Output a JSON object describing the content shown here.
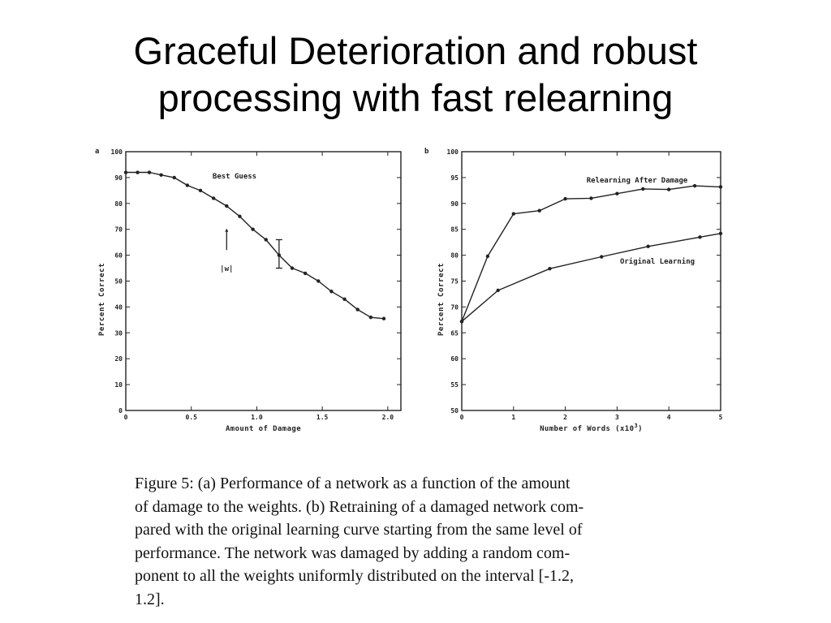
{
  "slide": {
    "title_line1": "Graceful Deterioration and robust",
    "title_line2": "processing with fast relearning"
  },
  "caption": {
    "lines": [
      "Figure 5: (a) Performance of a network as a function of the amount",
      "of damage to the weights. (b) Retraining of a damaged network com-",
      "pared with the original learning curve starting from the same level of",
      "performance. The network was damaged by adding a random com-",
      "ponent to all the weights uniformly distributed on the interval [-1.2,",
      "1.2]."
    ]
  },
  "chart_data": [
    {
      "panel_label": "a",
      "type": "line",
      "xlabel": "Amount of Damage",
      "ylabel": "Percent Correct",
      "xlim": [
        0,
        2.1
      ],
      "ylim": [
        0,
        100
      ],
      "xticks": [
        0,
        0.5,
        1.0,
        1.5,
        2.0
      ],
      "xtick_labels": [
        "0",
        "0.5",
        "1.0",
        "1.5",
        "2.0"
      ],
      "yticks": [
        0,
        10,
        20,
        30,
        40,
        50,
        60,
        70,
        80,
        90,
        100
      ],
      "ytick_labels": [
        "0",
        "10",
        "20",
        "30",
        "40",
        "50",
        "60",
        "70",
        "80",
        "90",
        "100"
      ],
      "series": [
        {
          "name": "Best Guess",
          "x": [
            0.0,
            0.09,
            0.18,
            0.27,
            0.37,
            0.47,
            0.57,
            0.67,
            0.77,
            0.87,
            0.97,
            1.07,
            1.17,
            1.27,
            1.37,
            1.47,
            1.57,
            1.67,
            1.77,
            1.87,
            1.97
          ],
          "y": [
            92,
            92,
            92,
            91,
            90,
            87,
            85,
            82,
            79,
            75,
            70,
            66,
            60,
            55,
            53,
            50,
            46,
            43,
            39,
            36,
            35.5
          ]
        }
      ],
      "error_bar": {
        "x": 1.17,
        "y": 60,
        "low": 55,
        "high": 66
      },
      "annotations": {
        "arrow_label": "|w|",
        "arrow_x": 0.77,
        "arrow_from_y": 62,
        "arrow_to_y": 70
      }
    },
    {
      "panel_label": "b",
      "type": "line",
      "xlabel": "Number of Words (x10",
      "xlabel_superscript": "3",
      "xlabel_suffix": ")",
      "ylabel": "Percent Correct",
      "xlim": [
        0,
        5
      ],
      "ylim": [
        50,
        100
      ],
      "xticks": [
        0,
        1,
        2,
        3,
        4,
        5
      ],
      "xtick_labels": [
        "0",
        "1",
        "2",
        "3",
        "4",
        "5"
      ],
      "yticks": [
        50,
        55,
        60,
        65,
        70,
        75,
        80,
        85,
        90,
        95,
        100
      ],
      "ytick_labels": [
        "50",
        "55",
        "60",
        "65",
        "70",
        "75",
        "80",
        "85",
        "90",
        "95",
        "100"
      ],
      "series": [
        {
          "name": "Relearning After Damage",
          "x": [
            0,
            0.5,
            1.0,
            1.5,
            2.0,
            2.5,
            3.0,
            3.5,
            4.0,
            4.5,
            5.0
          ],
          "y": [
            67.2,
            79.8,
            88.0,
            88.6,
            90.9,
            91.0,
            91.9,
            92.8,
            92.7,
            93.4,
            93.2
          ]
        },
        {
          "name": "Original Learning",
          "x": [
            0,
            0.7,
            1.7,
            2.7,
            3.6,
            4.6,
            5.0
          ],
          "y": [
            67.2,
            73.2,
            77.4,
            79.7,
            81.7,
            83.5,
            84.2
          ]
        }
      ]
    }
  ]
}
